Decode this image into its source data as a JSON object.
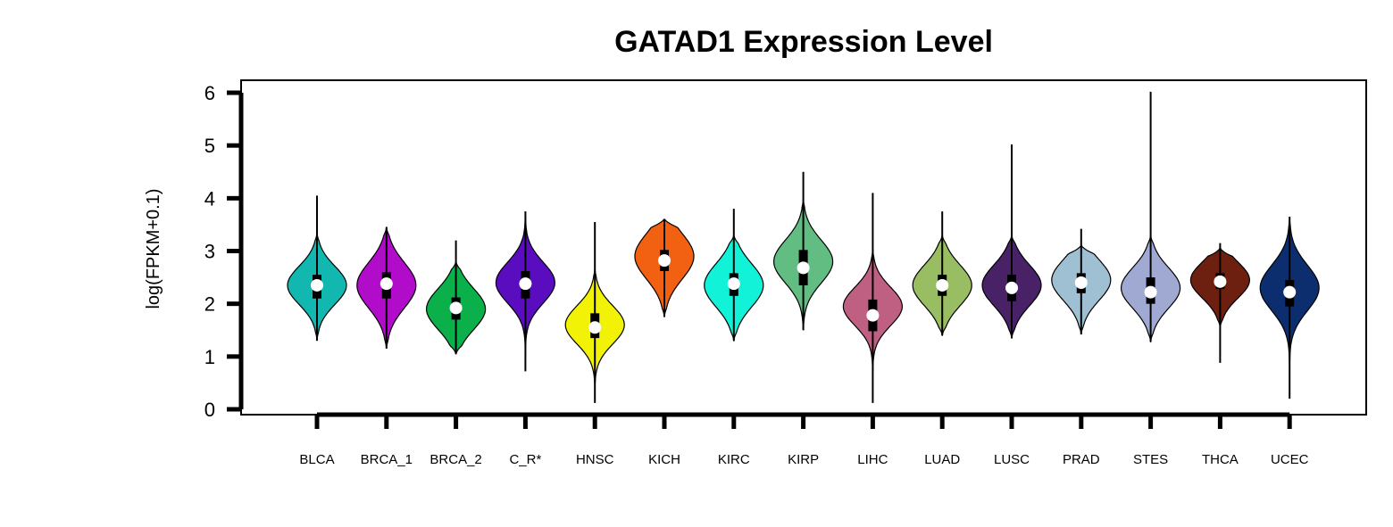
{
  "chart_data": {
    "type": "violin",
    "title": "GATAD1 Expression Level",
    "xlabel": "",
    "ylabel": "log(FPKM+0.1)",
    "ylim": [
      0,
      6
    ],
    "yticks": [
      0,
      1,
      2,
      3,
      4,
      5,
      6
    ],
    "grid": false,
    "legend": "none",
    "categories": [
      "BLCA",
      "BRCA_1",
      "BRCA_2",
      "C_R*",
      "HNSC",
      "KICH",
      "KIRC",
      "KIRP",
      "LIHC",
      "LUAD",
      "LUSC",
      "PRAD",
      "STES",
      "THCA",
      "UCEC"
    ],
    "series": [
      {
        "category": "BLCA",
        "color": "#12b8b0",
        "min": 1.3,
        "q1": 2.1,
        "median": 2.35,
        "q3": 2.55,
        "max": 4.05,
        "violin_low": 1.3,
        "violin_high": 3.35,
        "mode": 2.35,
        "spread": 0.8
      },
      {
        "category": "BRCA_1",
        "color": "#b10cc9",
        "min": 1.15,
        "q1": 2.1,
        "median": 2.38,
        "q3": 2.6,
        "max": 3.45,
        "violin_low": 1.15,
        "violin_high": 3.45,
        "mode": 2.35,
        "spread": 0.95
      },
      {
        "category": "BRCA_2",
        "color": "#0cb04a",
        "min": 1.05,
        "q1": 1.7,
        "median": 1.92,
        "q3": 2.12,
        "max": 3.2,
        "violin_low": 1.05,
        "violin_high": 2.8,
        "mode": 1.9,
        "spread": 0.85
      },
      {
        "category": "C_R*",
        "color": "#5a0cbf",
        "min": 0.72,
        "q1": 2.1,
        "median": 2.38,
        "q3": 2.62,
        "max": 3.75,
        "violin_low": 0.72,
        "violin_high": 3.75,
        "mode": 2.4,
        "spread": 0.85
      },
      {
        "category": "HNSC",
        "color": "#f2f207",
        "min": 0.12,
        "q1": 1.35,
        "median": 1.55,
        "q3": 1.82,
        "max": 3.55,
        "violin_low": 0.4,
        "violin_high": 2.7,
        "mode": 1.6,
        "spread": 0.8
      },
      {
        "category": "KICH",
        "color": "#f26112",
        "min": 1.75,
        "q1": 2.62,
        "median": 2.82,
        "q3": 3.02,
        "max": 3.6,
        "violin_low": 1.75,
        "violin_high": 3.6,
        "mode": 2.9,
        "spread": 0.95
      },
      {
        "category": "KIRC",
        "color": "#12f2d8",
        "min": 1.3,
        "q1": 2.15,
        "median": 2.38,
        "q3": 2.58,
        "max": 3.8,
        "violin_low": 1.3,
        "violin_high": 3.3,
        "mode": 2.35,
        "spread": 0.9
      },
      {
        "category": "KIRP",
        "color": "#62bd83",
        "min": 1.5,
        "q1": 2.35,
        "median": 2.68,
        "q3": 3.02,
        "max": 4.5,
        "violin_low": 1.5,
        "violin_high": 4.0,
        "mode": 2.8,
        "spread": 0.9
      },
      {
        "category": "LIHC",
        "color": "#bf6082",
        "min": 0.12,
        "q1": 1.48,
        "median": 1.78,
        "q3": 2.08,
        "max": 4.1,
        "violin_low": 0.25,
        "violin_high": 3.05,
        "mode": 1.95,
        "spread": 0.8
      },
      {
        "category": "LUAD",
        "color": "#99bd62",
        "min": 1.4,
        "q1": 2.15,
        "median": 2.35,
        "q3": 2.55,
        "max": 3.75,
        "violin_low": 1.4,
        "violin_high": 3.3,
        "mode": 2.35,
        "spread": 0.85
      },
      {
        "category": "LUSC",
        "color": "#482166",
        "min": 1.35,
        "q1": 2.05,
        "median": 2.3,
        "q3": 2.55,
        "max": 5.02,
        "violin_low": 1.35,
        "violin_high": 3.3,
        "mode": 2.35,
        "spread": 0.85
      },
      {
        "category": "PRAD",
        "color": "#9fc0d2",
        "min": 1.42,
        "q1": 2.2,
        "median": 2.4,
        "q3": 2.58,
        "max": 3.42,
        "violin_low": 1.42,
        "violin_high": 3.1,
        "mode": 2.45,
        "spread": 0.85
      },
      {
        "category": "STES",
        "color": "#9fa9d2",
        "min": 1.28,
        "q1": 2.0,
        "median": 2.22,
        "q3": 2.5,
        "max": 6.02,
        "violin_low": 1.28,
        "violin_high": 3.3,
        "mode": 2.3,
        "spread": 0.85
      },
      {
        "category": "THCA",
        "color": "#6e2010",
        "min": 0.88,
        "q1": 2.28,
        "median": 2.42,
        "q3": 2.58,
        "max": 3.15,
        "violin_low": 1.55,
        "violin_high": 3.05,
        "mode": 2.45,
        "spread": 0.75
      },
      {
        "category": "UCEC",
        "color": "#0c2e6e",
        "min": 0.2,
        "q1": 1.95,
        "median": 2.22,
        "q3": 2.45,
        "max": 3.65,
        "violin_low": 0.35,
        "violin_high": 3.65,
        "mode": 2.3,
        "spread": 0.95
      }
    ]
  }
}
